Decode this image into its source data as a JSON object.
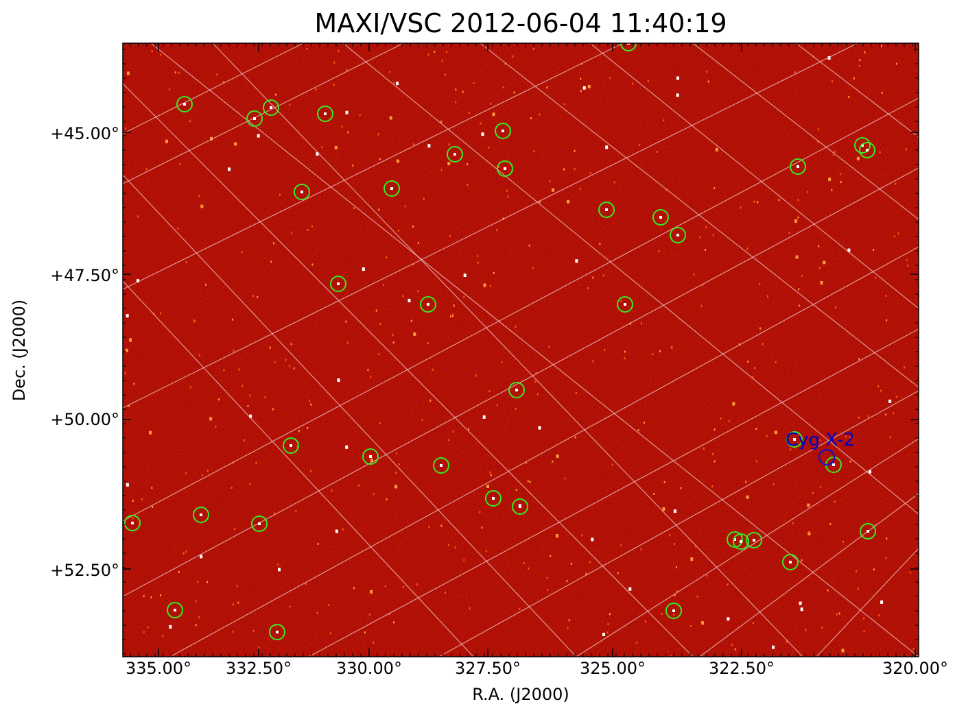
{
  "title": "MAXI/VSC 2012-06-04 11:40:19",
  "xlabel": "R.A. (J2000)",
  "ylabel": "Dec. (J2000)",
  "x_ticks": [
    "335.00°",
    "332.50°",
    "330.00°",
    "327.50°",
    "325.00°",
    "322.50°",
    "320.00°"
  ],
  "y_ticks": [
    "+45.00°",
    "+47.50°",
    "+50.00°",
    "+52.50°"
  ],
  "source_label": "Cyg X-2",
  "colors": {
    "background_map": "#a50000",
    "grid": "#f0c8c8",
    "catalog_circle": "#33ee22",
    "highlight_circle": "#1111cc"
  }
}
